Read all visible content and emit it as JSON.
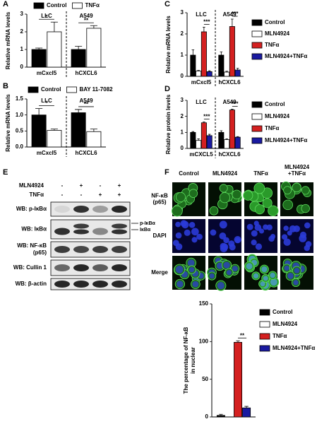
{
  "chart_data": [
    {
      "type": "bar",
      "label": "A",
      "ylabel": "Relative mRNA levels",
      "groups": [
        "LLC",
        "A549"
      ],
      "categories": [
        "mCxcl5",
        "hCXCL6"
      ],
      "series": [
        {
          "name": "Control",
          "color": "#000000",
          "values": [
            1.0,
            1.0
          ],
          "errors": [
            0.08,
            0.18
          ]
        },
        {
          "name": "TNFα",
          "color": "#ffffff",
          "values": [
            2.0,
            2.2
          ],
          "errors": [
            0.55,
            0.15
          ]
        }
      ],
      "annotations": [
        "*",
        "**"
      ],
      "ylim": [
        0,
        3
      ],
      "yticks": [
        0,
        1,
        2,
        3
      ]
    },
    {
      "type": "bar",
      "label": "B",
      "ylabel": "Relative mRNA levels",
      "groups": [
        "LLC",
        "A549"
      ],
      "categories": [
        "mCxcl5",
        "hCXCL6"
      ],
      "series": [
        {
          "name": "Control",
          "color": "#000000",
          "values": [
            1.0,
            1.07
          ],
          "errors": [
            0.2,
            0.1
          ]
        },
        {
          "name": "BAY 11-7082",
          "color": "#ffffff",
          "values": [
            0.52,
            0.48
          ],
          "errors": [
            0.04,
            0.08
          ]
        }
      ],
      "annotations": [
        "*",
        "**"
      ],
      "ylim": [
        0,
        1.5
      ],
      "yticks": [
        {
          "value": 0,
          "label": "0.0"
        },
        {
          "value": 0.5,
          "label": "0.5"
        },
        {
          "value": 1,
          "label": "1.0"
        },
        {
          "value": 1.5,
          "label": "1.5"
        }
      ]
    },
    {
      "type": "bar",
      "label": "C",
      "ylabel": "Relative mRNA levels",
      "groups": [
        "LLC",
        "A549"
      ],
      "categories": [
        "mCxcl5",
        "hCXCL6"
      ],
      "series": [
        {
          "name": "Control",
          "color": "#000000",
          "values": [
            1.0,
            1.0
          ],
          "errors": [
            0.25,
            0.15
          ]
        },
        {
          "name": "MLN4924",
          "color": "#ffffff",
          "values": [
            0.25,
            0.2
          ],
          "errors": [
            0.03,
            0.04
          ]
        },
        {
          "name": "TNFα",
          "color": "#d42020",
          "values": [
            2.1,
            2.35
          ],
          "errors": [
            0.22,
            0.35
          ]
        },
        {
          "name": "MLN4924+TNFα",
          "color": "#1a1aa0",
          "values": [
            0.22,
            0.3
          ],
          "errors": [
            0.04,
            0.08
          ]
        }
      ],
      "annotations": [
        "***",
        "***"
      ],
      "ylim": [
        0,
        3
      ],
      "yticks": [
        0,
        1,
        2,
        3
      ]
    },
    {
      "type": "bar",
      "label": "D",
      "ylabel": "Relative protein levels",
      "groups": [
        "LLC",
        "A549"
      ],
      "categories": [
        "mCXCL5",
        "hCXCL6"
      ],
      "series": [
        {
          "name": "Control",
          "color": "#000000",
          "values": [
            1.0,
            1.0
          ],
          "errors": [
            0.05,
            0.1
          ]
        },
        {
          "name": "MLN4924",
          "color": "#ffffff",
          "values": [
            0.5,
            0.55
          ],
          "errors": [
            0.1,
            0.05
          ]
        },
        {
          "name": "TNFα",
          "color": "#d42020",
          "values": [
            1.6,
            2.4
          ],
          "errors": [
            0.05,
            0.05
          ]
        },
        {
          "name": "MLN4924+TNFα",
          "color": "#1a1aa0",
          "values": [
            0.8,
            0.7
          ],
          "errors": [
            0.08,
            0.04
          ]
        }
      ],
      "annotations": [
        "***",
        "***"
      ],
      "ylim": [
        0,
        3
      ],
      "yticks": [
        0,
        1,
        2,
        3
      ]
    },
    {
      "type": "bar",
      "ylabel": [
        "The percentage of NF-κB",
        "in nuclear"
      ],
      "categories": [
        null
      ],
      "series": [
        {
          "name": "Control",
          "color": "#000000",
          "values": [
            2
          ],
          "errors": [
            1.5
          ]
        },
        {
          "name": "MLN4924",
          "color": "#ffffff",
          "values": [
            0
          ],
          "errors": [
            0
          ]
        },
        {
          "name": "TNFα",
          "color": "#d42020",
          "values": [
            99
          ],
          "errors": [
            2
          ]
        },
        {
          "name": "MLN4924+TNFα",
          "color": "#1a1aa0",
          "values": [
            12
          ],
          "errors": [
            2
          ]
        }
      ],
      "annotations": [
        "**"
      ],
      "ylim": [
        0,
        150
      ],
      "yticks": [
        0,
        50,
        100,
        150
      ]
    }
  ],
  "blot": {
    "label": "E",
    "treatments": [
      {
        "name": "MLN4924",
        "signs": [
          "-",
          "+",
          "-",
          "+"
        ]
      },
      {
        "name": "TNFα",
        "signs": [
          "-",
          "-",
          "+",
          "+"
        ]
      }
    ],
    "rows": [
      [
        "WB: p-IκBα"
      ],
      [
        "WB: IκBα"
      ],
      [
        "WB: NF-κB",
        "(p65)"
      ],
      [
        "WB: Cullin 1"
      ],
      [
        "WB: β-actin"
      ]
    ],
    "band_labels": [
      "p-IκBα",
      "IκBα"
    ]
  },
  "microscopy": {
    "label": "F",
    "columns": [
      [
        "Control"
      ],
      [
        "MLN4924"
      ],
      [
        "TNFα"
      ],
      [
        "MLN4924",
        "+TNFα"
      ]
    ],
    "rows": [
      [
        "NF-κB",
        "(p65)"
      ],
      [
        "DAPI"
      ],
      [
        "Merge"
      ]
    ]
  }
}
